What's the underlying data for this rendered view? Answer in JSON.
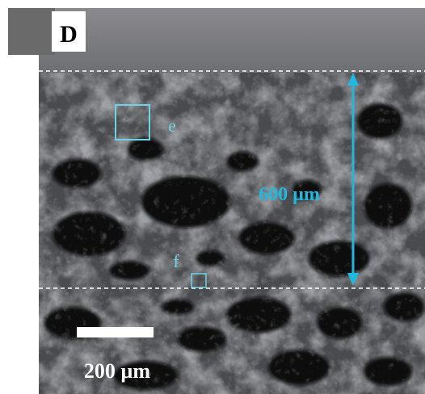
{
  "panel_label": "D",
  "regions": [
    {
      "label": "e"
    },
    {
      "label": "f"
    }
  ],
  "thickness_label": "600 µm",
  "scale_bar_label": "200 µm"
}
